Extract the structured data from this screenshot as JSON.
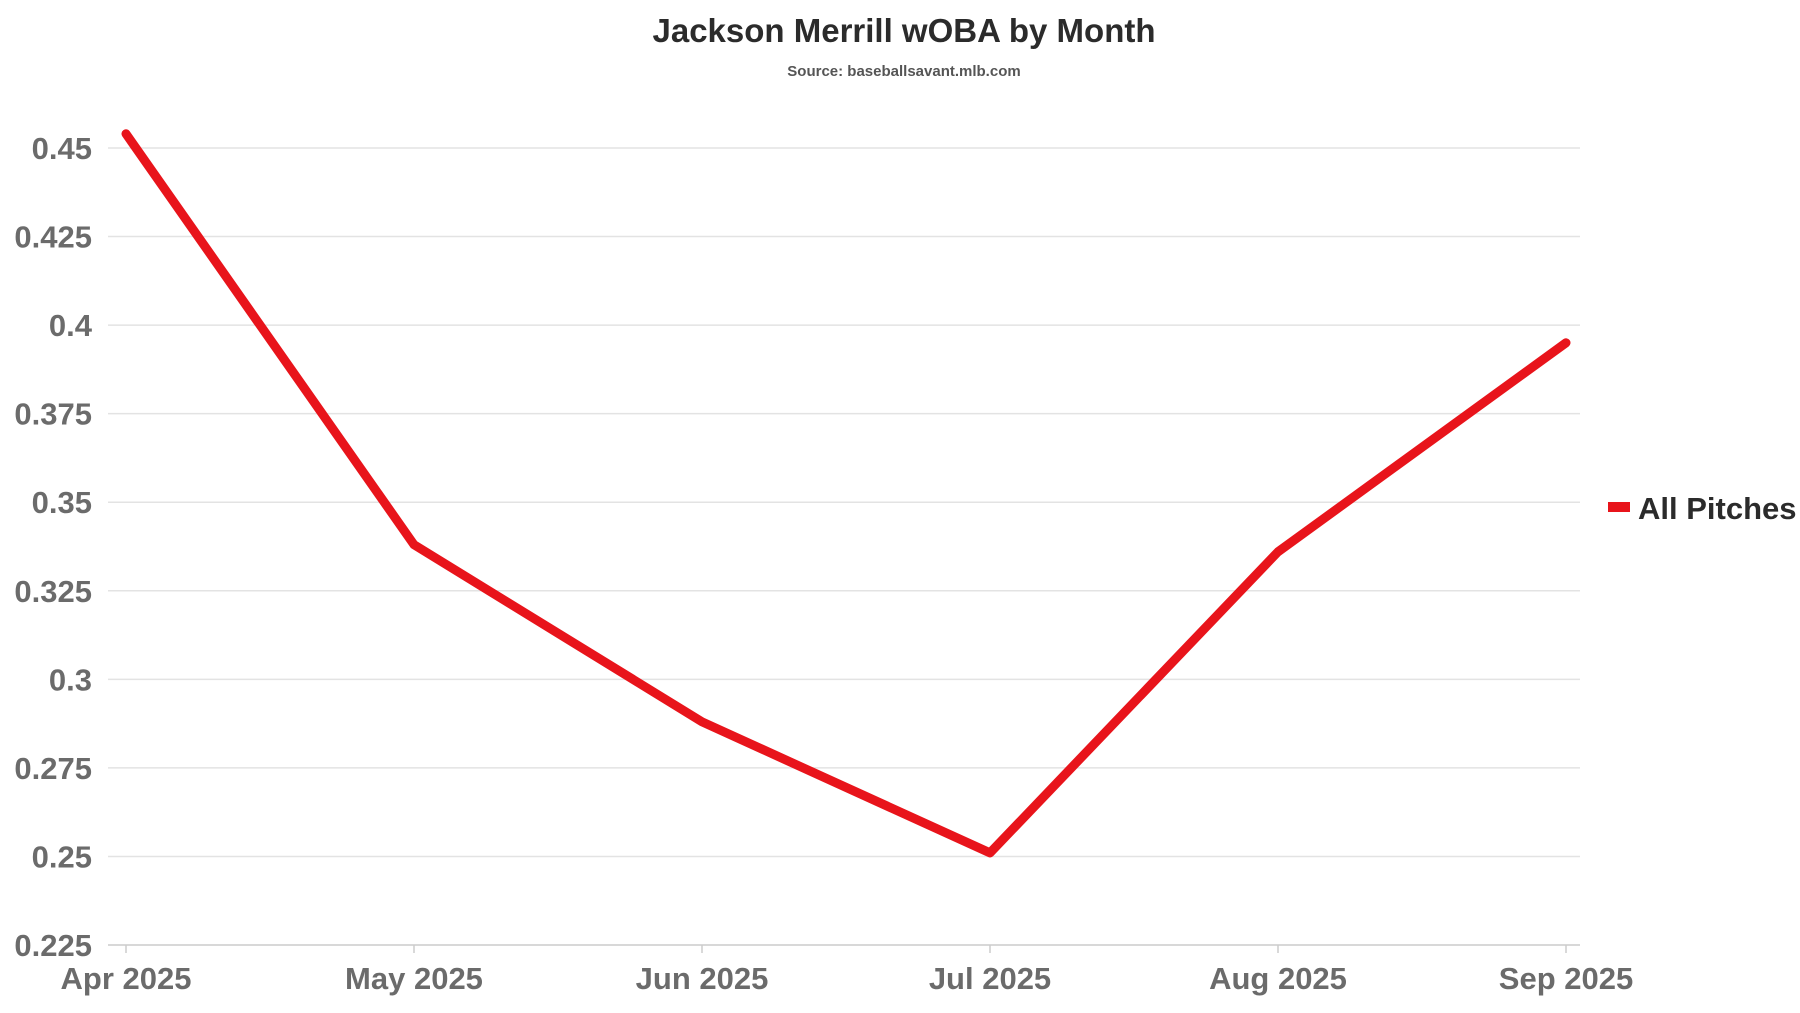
{
  "chart_data": {
    "type": "line",
    "title": "Jackson Merrill wOBA by Month",
    "subtitle": "Source: baseballsavant.mlb.com",
    "xlabel": "",
    "ylabel": "",
    "categories": [
      "Apr 2025",
      "May 2025",
      "Jun 2025",
      "Jul 2025",
      "Aug 2025",
      "Sep 2025"
    ],
    "series": [
      {
        "name": "All Pitches",
        "color": "#e8141b",
        "values": [
          0.454,
          0.338,
          0.288,
          0.251,
          0.336,
          0.395
        ]
      }
    ],
    "ylim": [
      0.225,
      0.455
    ],
    "yticks": [
      "0.225",
      "0.25",
      "0.275",
      "0.3",
      "0.325",
      "0.35",
      "0.375",
      "0.4",
      "0.425",
      "0.45"
    ],
    "grid": true,
    "legend_position": "right"
  }
}
